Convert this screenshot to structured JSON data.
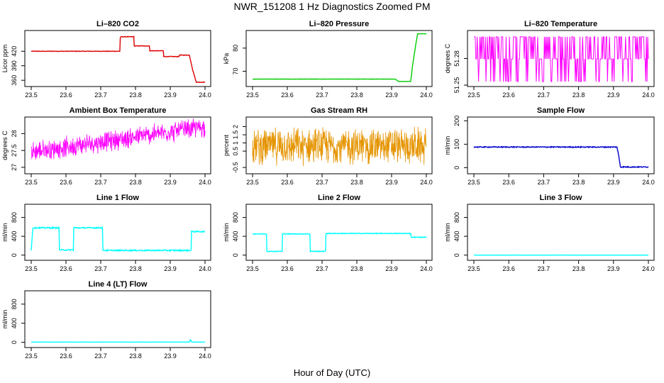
{
  "page": {
    "title": "NWR_151208  1 Hz Diagnostics Zoomed PM",
    "xlabel": "Hour of Day (UTC)"
  },
  "colors": {
    "red": "#dd0000",
    "green": "#00cc00",
    "magenta": "#ff00ff",
    "orange": "#e59400",
    "blue": "#0000cc",
    "cyan": "#00ffff"
  },
  "chart_data": [
    {
      "type": "line",
      "title": "Li–820 CO2",
      "ylabel": "Licor ppm",
      "color": "red",
      "xlim": [
        23.5,
        24.0
      ],
      "ylim": [
        350,
        460
      ],
      "xticks": [
        "23.5",
        "23.6",
        "23.7",
        "23.8",
        "23.9",
        "24.0"
      ],
      "yticks": [
        360,
        390,
        420
      ],
      "x": [
        23.5,
        23.755,
        23.755,
        23.76,
        23.795,
        23.795,
        23.8,
        23.84,
        23.84,
        23.88,
        23.88,
        23.925,
        23.925,
        23.955,
        23.965,
        23.975,
        24.0
      ],
      "y": [
        420,
        420,
        448,
        450,
        450,
        431,
        431,
        431,
        421,
        421,
        409,
        409,
        412,
        412,
        380,
        356,
        356
      ],
      "noise": 1
    },
    {
      "type": "line",
      "title": "Li–820 Pressure",
      "ylabel": "kPa",
      "color": "green",
      "xlim": [
        23.5,
        24.0
      ],
      "ylim": [
        64,
        87
      ],
      "xticks": [
        "23.5",
        "23.6",
        "23.7",
        "23.8",
        "23.9",
        "24.0"
      ],
      "yticks": [
        70,
        80
      ],
      "x": [
        23.5,
        23.91,
        23.92,
        23.955,
        23.96,
        23.97,
        23.975,
        24.0
      ],
      "y": [
        66.6,
        66.6,
        65.6,
        65.6,
        72,
        82,
        86.2,
        86.2
      ],
      "noise": 0.1
    },
    {
      "type": "line",
      "title": "Li–820 Temperature",
      "ylabel": "degrees C",
      "color": "magenta",
      "xlim": [
        23.5,
        24.0
      ],
      "ylim": [
        51.25,
        51.31
      ],
      "xticks": [
        "23.5",
        "23.6",
        "23.7",
        "23.8",
        "23.9",
        "24.0"
      ],
      "yticks": [
        51.25,
        51.28
      ],
      "levels": [
        51.254,
        51.2795,
        51.3045
      ],
      "dense": true
    },
    {
      "type": "line",
      "title": "Ambient Box Temperature",
      "ylabel": "degrees C",
      "color": "magenta",
      "xlim": [
        23.5,
        24.0
      ],
      "ylim": [
        26.85,
        28.45
      ],
      "xticks": [
        "23.5",
        "23.6",
        "23.7",
        "23.8",
        "23.9",
        "24.0"
      ],
      "yticks": [
        27.0,
        27.5,
        28.0
      ],
      "x": [
        23.5,
        24.0
      ],
      "y": [
        27.45,
        28.2
      ],
      "noise": 0.35,
      "dense": true
    },
    {
      "type": "line",
      "title": "Gas Stream RH",
      "ylabel": "percent",
      "color": "orange",
      "xlim": [
        23.5,
        24.0
      ],
      "ylim": [
        -0.8,
        2.5
      ],
      "xticks": [
        "23.5",
        "23.6",
        "23.7",
        "23.8",
        "23.9",
        "24.0"
      ],
      "yticks": [
        -0.5,
        0.5,
        1.0,
        1.5,
        2.0
      ],
      "x": [
        23.5,
        24.0
      ],
      "y": [
        0.8,
        0.8
      ],
      "noise": 1.3,
      "dense": true
    },
    {
      "type": "line",
      "title": "Sample Flow",
      "ylabel": "ml/min",
      "color": "blue",
      "xlim": [
        23.5,
        24.0
      ],
      "ylim": [
        -20,
        210
      ],
      "xticks": [
        "23.5",
        "23.6",
        "23.7",
        "23.8",
        "23.9",
        "24.0"
      ],
      "yticks": [
        0,
        100,
        200
      ],
      "x": [
        23.5,
        23.91,
        23.915,
        23.92,
        24.0
      ],
      "y": [
        88,
        88,
        50,
        3,
        3
      ],
      "noise": 4
    },
    {
      "type": "line",
      "title": "Line 1 Flow",
      "ylabel": "ml/min",
      "color": "cyan",
      "xlim": [
        23.5,
        24.0
      ],
      "ylim": [
        -80,
        1050
      ],
      "xticks": [
        "23.5",
        "23.6",
        "23.7",
        "23.8",
        "23.9",
        "24.0"
      ],
      "yticks": [
        0,
        400,
        800
      ],
      "x": [
        23.5,
        23.505,
        23.58,
        23.58,
        23.622,
        23.622,
        23.705,
        23.705,
        23.96,
        23.96,
        24.0
      ],
      "y": [
        110,
        580,
        580,
        110,
        110,
        580,
        580,
        100,
        100,
        500,
        500
      ],
      "noise": 25
    },
    {
      "type": "line",
      "title": "Line 2 Flow",
      "ylabel": "ml/min",
      "color": "cyan",
      "xlim": [
        23.5,
        24.0
      ],
      "ylim": [
        -80,
        1050
      ],
      "xticks": [
        "23.5",
        "23.6",
        "23.7",
        "23.8",
        "23.9",
        "24.0"
      ],
      "yticks": [
        0,
        400,
        800
      ],
      "x": [
        23.5,
        23.54,
        23.54,
        23.585,
        23.585,
        23.665,
        23.665,
        23.71,
        23.71,
        23.955,
        23.955,
        24.0
      ],
      "y": [
        450,
        450,
        80,
        80,
        450,
        450,
        80,
        80,
        460,
        460,
        380,
        380
      ],
      "noise": 15
    },
    {
      "type": "line",
      "title": "Line 3 Flow",
      "ylabel": "ml/min",
      "color": "cyan",
      "xlim": [
        23.5,
        24.0
      ],
      "ylim": [
        -80,
        1050
      ],
      "xticks": [
        "23.5",
        "23.6",
        "23.7",
        "23.8",
        "23.9",
        "24.0"
      ],
      "yticks": [
        0,
        400,
        800
      ],
      "x": [
        23.5,
        24.0
      ],
      "y": [
        0,
        0
      ],
      "noise": 3
    },
    {
      "type": "line",
      "title": "Line 4 (LT) Flow",
      "ylabel": "ml/min",
      "color": "cyan",
      "xlim": [
        23.5,
        24.0
      ],
      "ylim": [
        -80,
        1050
      ],
      "xticks": [
        "23.5",
        "23.6",
        "23.7",
        "23.8",
        "23.9",
        "24.0"
      ],
      "yticks": [
        0,
        400,
        800
      ],
      "x": [
        23.5,
        23.955,
        23.958,
        23.962,
        24.0
      ],
      "y": [
        5,
        5,
        60,
        5,
        5
      ],
      "noise": 3
    }
  ]
}
